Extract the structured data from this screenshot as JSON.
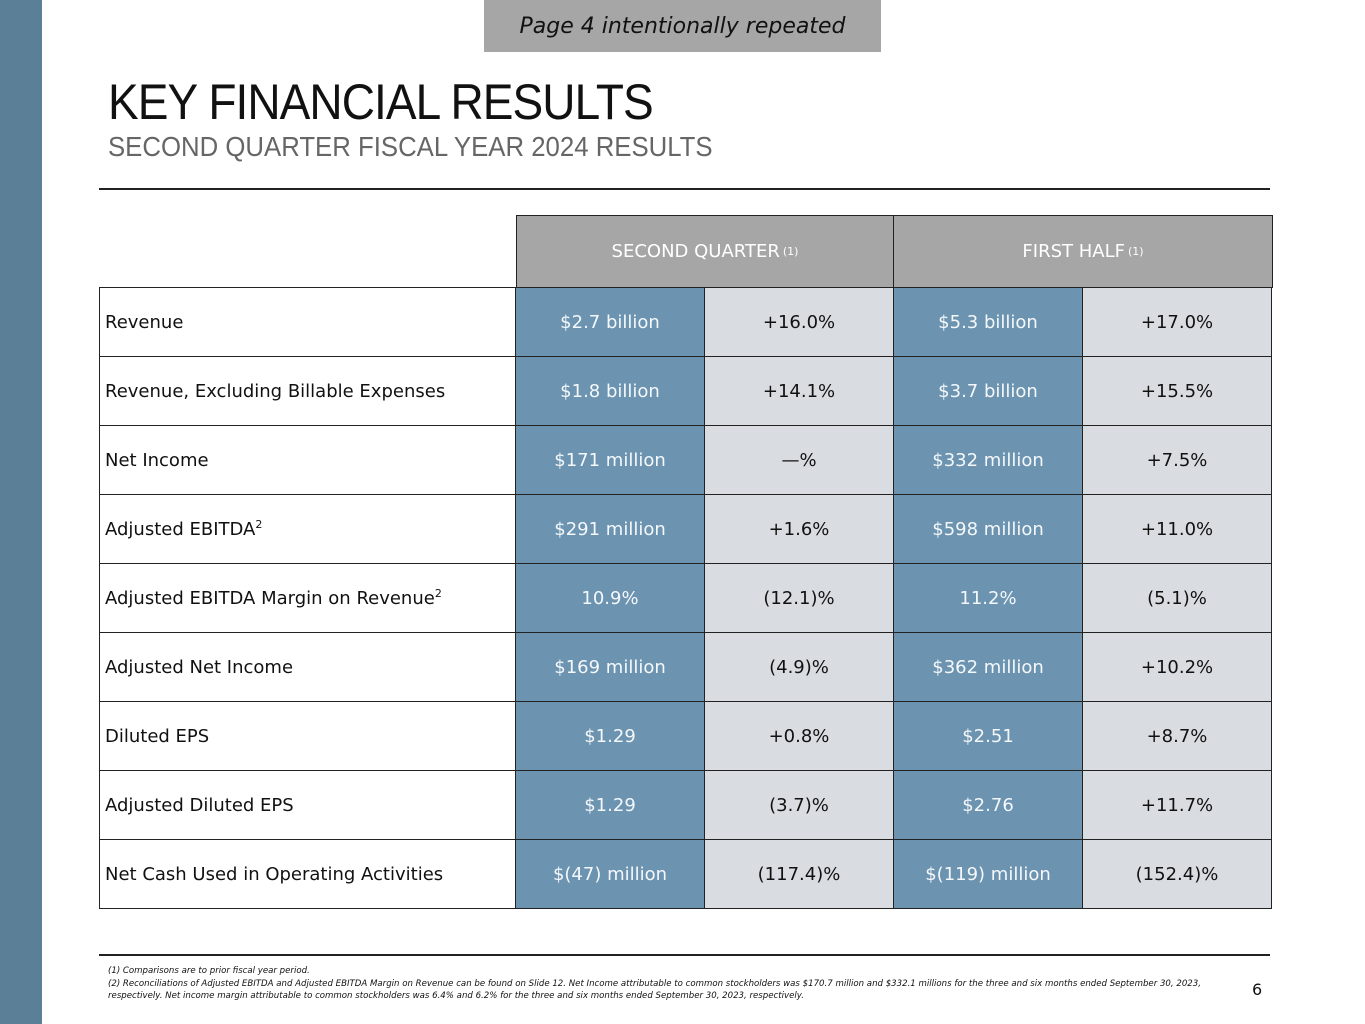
{
  "banner": "Page 4 intentionally repeated",
  "title": "KEY FINANCIAL RESULTS",
  "subtitle": "SECOND QUARTER FISCAL YEAR 2024 RESULTS",
  "headers": {
    "second_quarter": "SECOND QUARTER",
    "first_half": "FIRST HALF",
    "note_ref": "(1)"
  },
  "rows": [
    {
      "label": "Revenue",
      "sup": "",
      "q_value": "$2.7 billion",
      "q_change": "+16.0%",
      "h_value": "$5.3 billion",
      "h_change": "+17.0%"
    },
    {
      "label": "Revenue, Excluding Billable Expenses",
      "sup": "",
      "q_value": "$1.8 billion",
      "q_change": "+14.1%",
      "h_value": "$3.7 billion",
      "h_change": "+15.5%"
    },
    {
      "label": "Net Income",
      "sup": "",
      "q_value": "$171 million",
      "q_change": "—%",
      "h_value": "$332 million",
      "h_change": "+7.5%"
    },
    {
      "label": "Adjusted EBITDA",
      "sup": "2",
      "q_value": "$291 million",
      "q_change": "+1.6%",
      "h_value": "$598 million",
      "h_change": "+11.0%"
    },
    {
      "label": "Adjusted EBITDA Margin on Revenue",
      "sup": "2",
      "q_value": "10.9%",
      "q_change": "(12.1)%",
      "h_value": "11.2%",
      "h_change": "(5.1)%"
    },
    {
      "label": "Adjusted Net Income",
      "sup": "",
      "q_value": "$169 million",
      "q_change": "(4.9)%",
      "h_value": "$362 million",
      "h_change": "+10.2%"
    },
    {
      "label": "Diluted EPS",
      "sup": "",
      "q_value": "$1.29",
      "q_change": "+0.8%",
      "h_value": "$2.51",
      "h_change": "+8.7%"
    },
    {
      "label": "Adjusted Diluted EPS",
      "sup": "",
      "q_value": "$1.29",
      "q_change": "(3.7)%",
      "h_value": "$2.76",
      "h_change": "+11.7%"
    },
    {
      "label": "Net Cash Used in Operating Activities",
      "sup": "",
      "q_value": "$(47) million",
      "q_change": "(117.4)%",
      "h_value": "$(119) million",
      "h_change": "(152.4)%"
    }
  ],
  "footnotes": [
    "(1) Comparisons are to prior fiscal year period.",
    "(2) Reconciliations of Adjusted EBITDA and Adjusted EBITDA Margin on Revenue can be found on Slide 12. Net Income attributable to common stockholders was $170.7 million and $332.1 millions for the three and six months ended September 30, 2023, respectively.  Net income margin attributable to common stockholders was 6.4% and 6.2% for the three and six months ended September 30, 2023, respectively."
  ],
  "page_number": "6",
  "colors": {
    "sidebar": "#5a7f96",
    "value_cell": "#6c93b0",
    "change_cell": "#d9dce0",
    "header": "#a6a6a6"
  }
}
